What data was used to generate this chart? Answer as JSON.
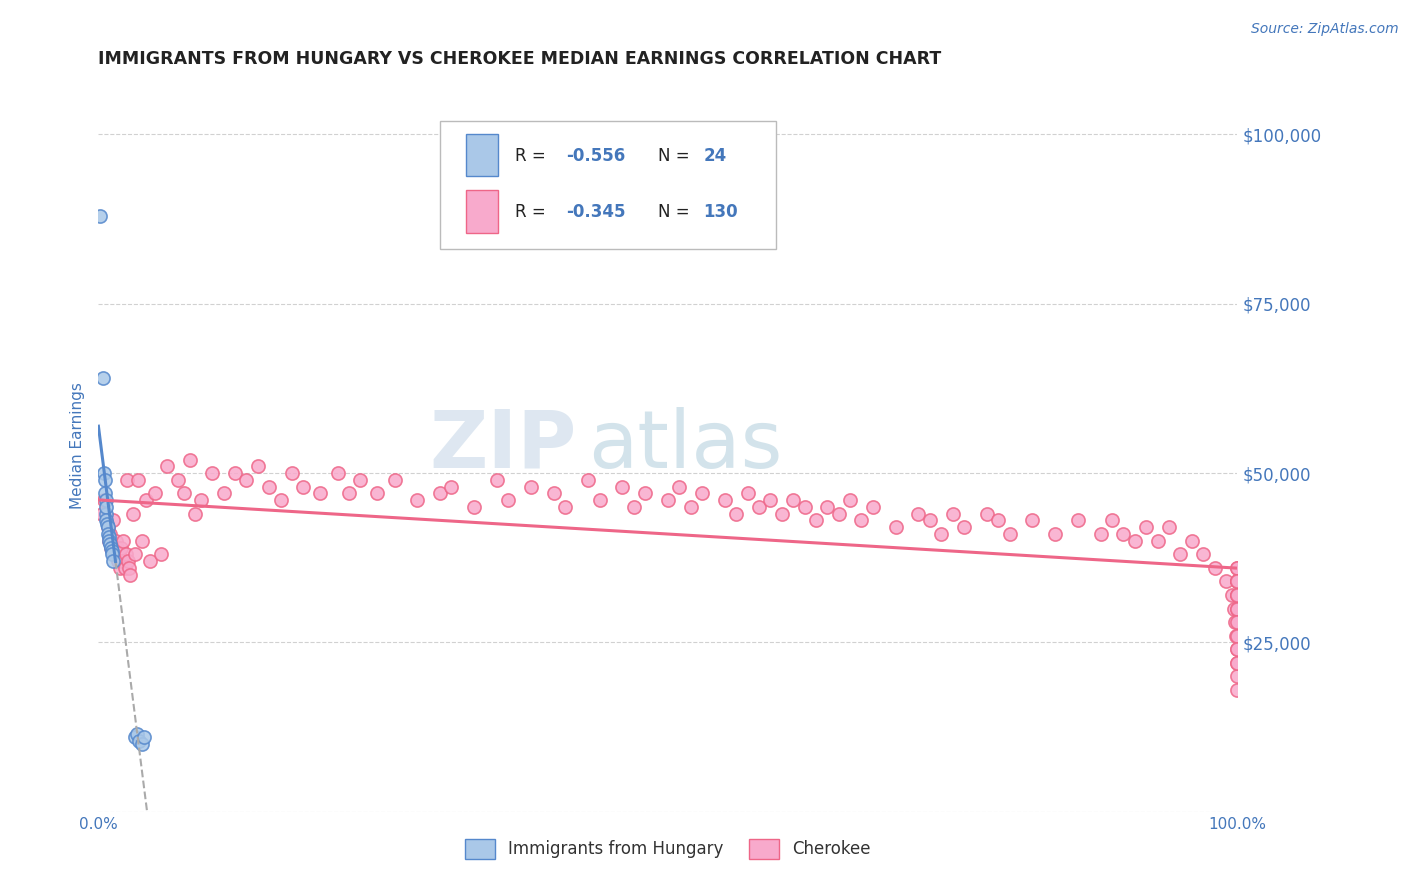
{
  "title": "IMMIGRANTS FROM HUNGARY VS CHEROKEE MEDIAN EARNINGS CORRELATION CHART",
  "source_text": "Source: ZipAtlas.com",
  "ylabel": "Median Earnings",
  "xlim": [
    0.0,
    100.0
  ],
  "ylim": [
    0,
    108000
  ],
  "yticks": [
    0,
    25000,
    50000,
    75000,
    100000
  ],
  "ytick_labels": [
    "",
    "$25,000",
    "$50,000",
    "$75,000",
    "$100,000"
  ],
  "blue_R": -0.556,
  "blue_N": 24,
  "pink_R": -0.345,
  "pink_N": 130,
  "blue_color": "#5588CC",
  "blue_fill": "#AAC8E8",
  "pink_color": "#EE6688",
  "pink_fill": "#F8AACC",
  "title_color": "#222222",
  "axis_label_color": "#4477BB",
  "tick_label_color": "#4477BB",
  "grid_color": "#CCCCCC",
  "legend_R_color": "#222222",
  "legend_val_color": "#4477BB",
  "blue_scatter_x": [
    0.15,
    0.4,
    0.5,
    0.55,
    0.6,
    0.65,
    0.65,
    0.7,
    0.7,
    0.75,
    0.8,
    0.85,
    0.9,
    0.95,
    1.0,
    1.1,
    1.15,
    1.2,
    1.3,
    3.2,
    3.4,
    3.6,
    3.8,
    4.0
  ],
  "blue_scatter_y": [
    88000,
    64000,
    50000,
    49000,
    47000,
    46000,
    44000,
    45000,
    43000,
    42500,
    42000,
    41000,
    40500,
    40000,
    39500,
    39000,
    38500,
    38000,
    37000,
    11000,
    11500,
    10500,
    10000,
    11000
  ],
  "pink_scatter_x": [
    0.3,
    0.5,
    0.8,
    0.9,
    1.0,
    1.1,
    1.3,
    1.4,
    1.5,
    1.6,
    1.7,
    1.8,
    1.9,
    2.0,
    2.1,
    2.2,
    2.3,
    2.4,
    2.5,
    2.6,
    2.7,
    2.8,
    3.0,
    3.2,
    3.5,
    3.8,
    4.2,
    4.5,
    5.0,
    5.5,
    6.0,
    7.0,
    7.5,
    8.0,
    8.5,
    9.0,
    10.0,
    11.0,
    12.0,
    13.0,
    14.0,
    15.0,
    16.0,
    17.0,
    18.0,
    19.5,
    21.0,
    22.0,
    23.0,
    24.5,
    26.0,
    28.0,
    30.0,
    31.0,
    33.0,
    35.0,
    36.0,
    38.0,
    40.0,
    41.0,
    43.0,
    44.0,
    46.0,
    47.0,
    48.0,
    50.0,
    51.0,
    52.0,
    53.0,
    55.0,
    56.0,
    57.0,
    58.0,
    59.0,
    60.0,
    61.0,
    62.0,
    63.0,
    64.0,
    65.0,
    66.0,
    67.0,
    68.0,
    70.0,
    72.0,
    73.0,
    74.0,
    75.0,
    76.0,
    78.0,
    79.0,
    80.0,
    82.0,
    84.0,
    86.0,
    88.0,
    89.0,
    90.0,
    91.0,
    92.0,
    93.0,
    94.0,
    95.0,
    96.0,
    97.0,
    98.0,
    99.0,
    99.5,
    99.7,
    99.8,
    99.9,
    99.95,
    99.97,
    99.98,
    99.99,
    100.0,
    100.0,
    100.0,
    100.0,
    100.0,
    100.0,
    100.0,
    100.0,
    100.0,
    100.0,
    100.0,
    100.0,
    100.0,
    100.0,
    100.0
  ],
  "pink_scatter_y": [
    44000,
    46000,
    42000,
    40000,
    41000,
    39000,
    43000,
    38000,
    40000,
    39000,
    37000,
    38000,
    36000,
    39000,
    37000,
    40000,
    36000,
    38000,
    49000,
    37000,
    36000,
    35000,
    44000,
    38000,
    49000,
    40000,
    46000,
    37000,
    47000,
    38000,
    51000,
    49000,
    47000,
    52000,
    44000,
    46000,
    50000,
    47000,
    50000,
    49000,
    51000,
    48000,
    46000,
    50000,
    48000,
    47000,
    50000,
    47000,
    49000,
    47000,
    49000,
    46000,
    47000,
    48000,
    45000,
    49000,
    46000,
    48000,
    47000,
    45000,
    49000,
    46000,
    48000,
    45000,
    47000,
    46000,
    48000,
    45000,
    47000,
    46000,
    44000,
    47000,
    45000,
    46000,
    44000,
    46000,
    45000,
    43000,
    45000,
    44000,
    46000,
    43000,
    45000,
    42000,
    44000,
    43000,
    41000,
    44000,
    42000,
    44000,
    43000,
    41000,
    43000,
    41000,
    43000,
    41000,
    43000,
    41000,
    40000,
    42000,
    40000,
    42000,
    38000,
    40000,
    38000,
    36000,
    34000,
    32000,
    30000,
    28000,
    26000,
    24000,
    22000,
    20000,
    18000,
    30000,
    32000,
    34000,
    36000,
    34000,
    36000,
    34000,
    32000,
    34000,
    32000,
    30000,
    28000,
    26000,
    24000,
    22000
  ]
}
